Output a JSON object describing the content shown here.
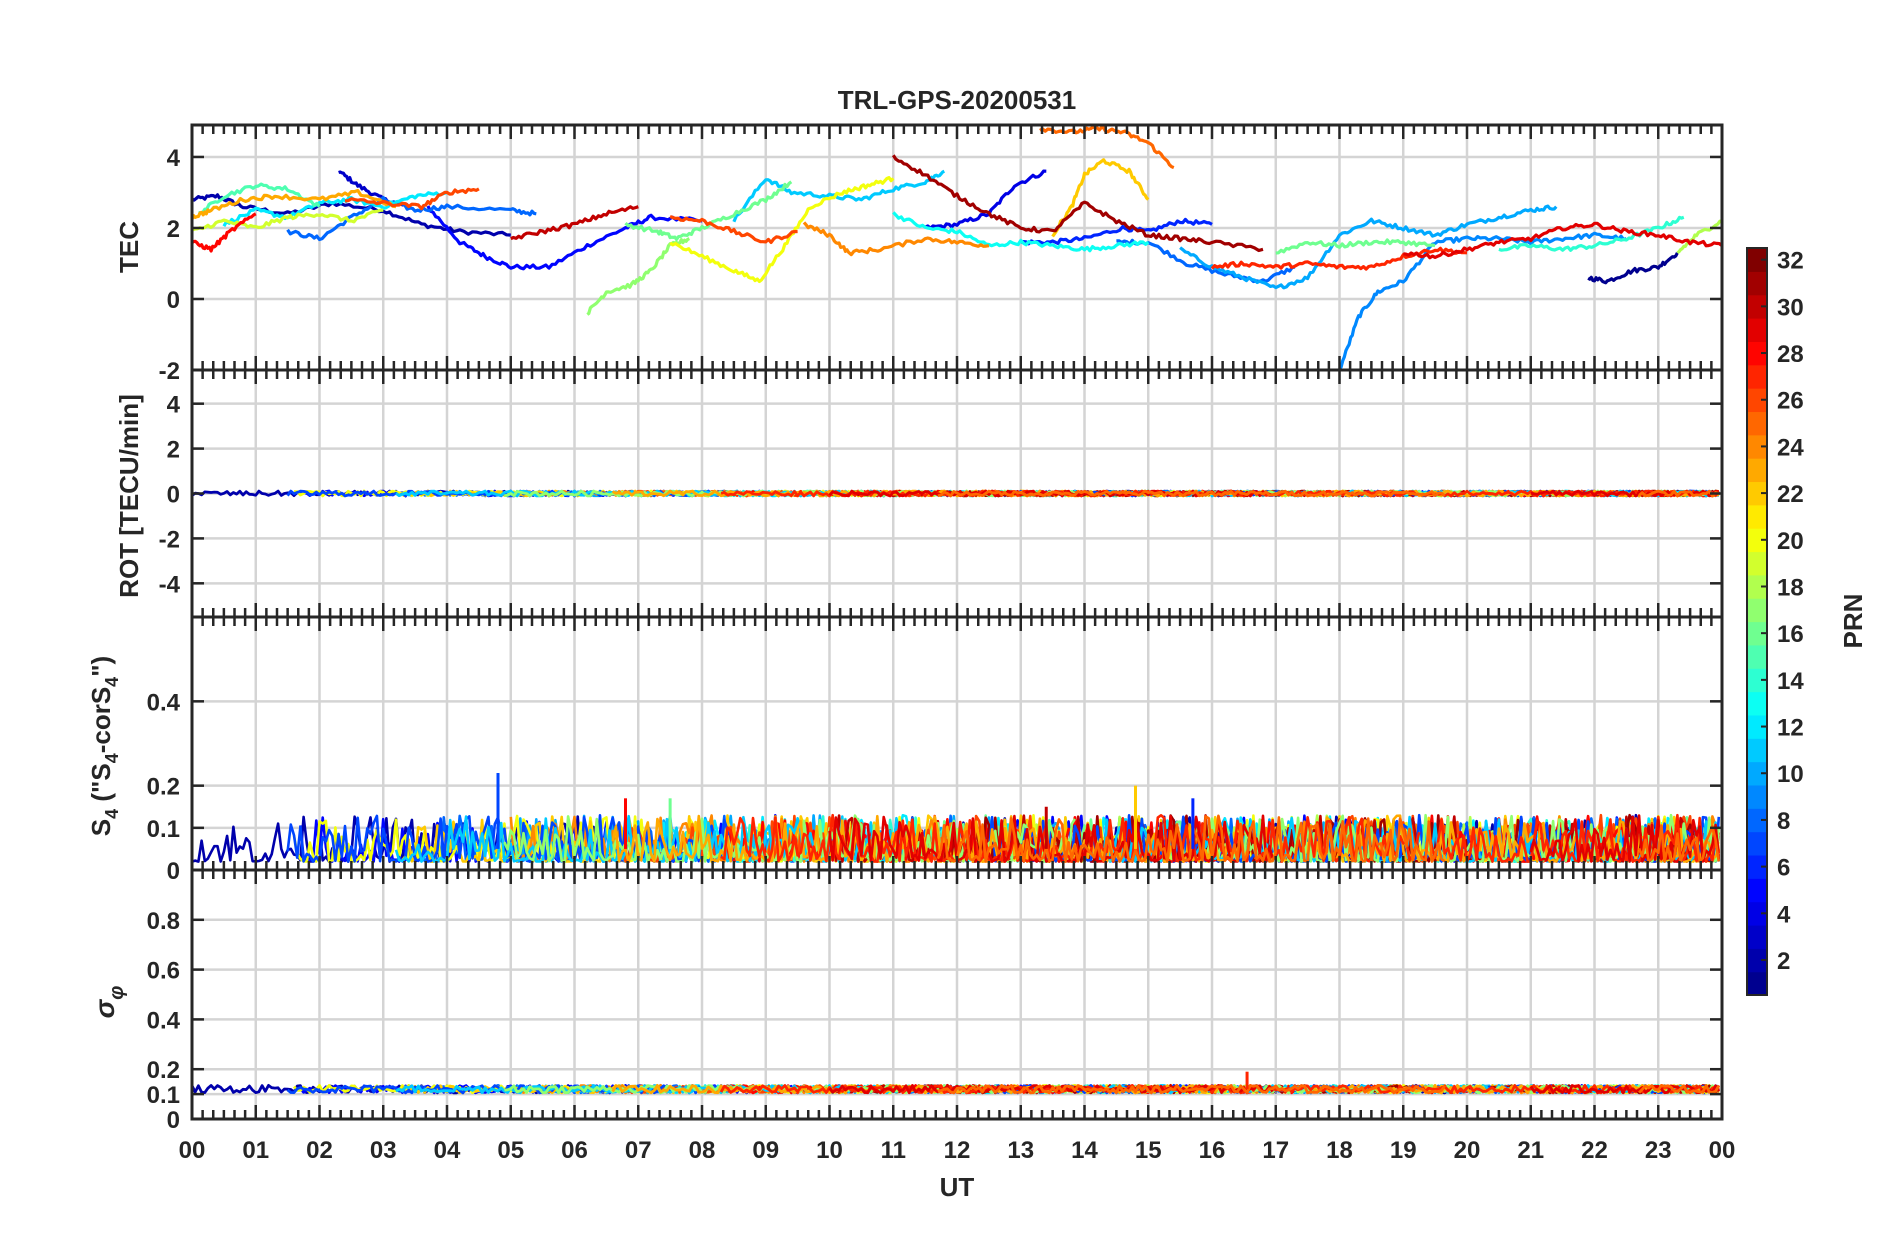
{
  "figure": {
    "title": "TRL-GPS-20200531",
    "xlabel": "UT",
    "x_tick_labels": [
      "00",
      "01",
      "02",
      "03",
      "04",
      "05",
      "06",
      "07",
      "08",
      "09",
      "10",
      "11",
      "12",
      "13",
      "14",
      "15",
      "16",
      "17",
      "18",
      "19",
      "20",
      "21",
      "22",
      "23",
      "00"
    ]
  },
  "colorbar": {
    "label": "PRN",
    "range": [
      1,
      32
    ],
    "tick_labels": [
      "2",
      "4",
      "6",
      "8",
      "10",
      "12",
      "14",
      "16",
      "18",
      "20",
      "22",
      "24",
      "26",
      "28",
      "30",
      "32"
    ],
    "tick_values": [
      2,
      4,
      6,
      8,
      10,
      12,
      14,
      16,
      18,
      20,
      22,
      24,
      26,
      28,
      30,
      32
    ],
    "colormap": "jet",
    "colormap_stops": [
      "#00008f",
      "#0000ff",
      "#00ffff",
      "#ffff00",
      "#ff0000",
      "#800000"
    ]
  },
  "chart_data": [
    {
      "type": "line",
      "panel": "tec",
      "ylabel": "TEC",
      "xlim": [
        0,
        24
      ],
      "ylim": [
        -2,
        4.9
      ],
      "y_tick_labels": [
        "-2",
        "0",
        "2",
        "4"
      ],
      "y_tick_values": [
        -2,
        0,
        2,
        4
      ],
      "grid": true,
      "series": [
        {
          "prn": 2,
          "x": [
            0,
            0.4,
            0.8,
            1.5,
            2.2,
            3,
            3.6,
            4.2,
            5
          ],
          "y": [
            2.8,
            2.9,
            2.6,
            2.4,
            2.7,
            2.5,
            2.1,
            1.9,
            1.8
          ]
        },
        {
          "prn": 3,
          "x": [
            2.3,
            2.6,
            3.0,
            3.4
          ],
          "y": [
            3.6,
            3.2,
            2.8,
            2.6
          ]
        },
        {
          "prn": 5,
          "x": [
            3.7,
            4.2,
            4.6,
            5,
            5.6,
            6.2,
            6.8,
            7.2,
            8.0
          ],
          "y": [
            2.6,
            1.6,
            1.2,
            0.9,
            0.9,
            1.5,
            2.0,
            2.3,
            2.2
          ]
        },
        {
          "prn": 4,
          "x": [
            11.5,
            12,
            12.5,
            12.9,
            13.4
          ],
          "y": [
            2.0,
            2.1,
            2.4,
            3.2,
            3.6
          ]
        },
        {
          "prn": 6,
          "x": [
            13,
            13.5,
            14,
            14.6,
            15,
            15.5,
            16.0
          ],
          "y": [
            1.6,
            1.6,
            1.7,
            2.0,
            1.9,
            2.2,
            2.1
          ]
        },
        {
          "prn": 1,
          "x": [
            21.9,
            22.2,
            22.6,
            23.0,
            23.3
          ],
          "y": [
            0.6,
            0.5,
            0.8,
            0.9,
            1.3
          ]
        },
        {
          "prn": 8,
          "x": [
            1.5,
            2.0,
            2.5,
            3.0,
            3.5,
            4.0,
            5.0,
            5.4
          ],
          "y": [
            1.9,
            1.7,
            2.3,
            2.8,
            2.5,
            2.6,
            2.5,
            2.4
          ]
        },
        {
          "prn": 8,
          "x": [
            14.5,
            15,
            15.6,
            16.2,
            16.8,
            17.3
          ],
          "y": [
            1.6,
            1.6,
            1.0,
            0.7,
            0.5,
            0.9
          ]
        },
        {
          "prn": 9,
          "x": [
            18.0,
            18.3,
            18.6,
            19.0,
            19.5,
            20.0,
            20.5,
            21.0,
            21.5,
            22.0,
            22.5
          ],
          "y": [
            -2.0,
            -0.5,
            0.2,
            0.5,
            1.6,
            1.7,
            1.7,
            1.6,
            1.7,
            1.8,
            1.7
          ]
        },
        {
          "prn": 10,
          "x": [
            15.5,
            16,
            16.5,
            17.0,
            17.5,
            18.0,
            18.5,
            19.0,
            19.5,
            20.0,
            20.5,
            21.0,
            21.4
          ],
          "y": [
            1.4,
            0.9,
            0.6,
            0.3,
            0.6,
            1.8,
            2.2,
            2.0,
            1.8,
            2.1,
            2.3,
            2.5,
            2.6
          ]
        },
        {
          "prn": 11,
          "x": [
            8.5,
            9.0,
            9.4,
            10.0,
            10.5,
            11.0,
            11.5,
            11.8
          ],
          "y": [
            2.2,
            3.4,
            3.0,
            2.9,
            2.8,
            3.1,
            3.3,
            3.6
          ]
        },
        {
          "prn": 12,
          "x": [
            0.5,
            1.0,
            1.5,
            2.0,
            2.5,
            3.0,
            3.5,
            4.0
          ],
          "y": [
            2.1,
            2.5,
            2.3,
            2.7,
            2.8,
            2.6,
            2.9,
            3.0
          ]
        },
        {
          "prn": 13,
          "x": [
            11.0,
            11.5,
            12.0,
            12.5,
            13.0,
            13.5,
            14.0,
            14.5,
            15.0
          ],
          "y": [
            2.4,
            2.0,
            1.9,
            1.5,
            1.6,
            1.5,
            1.4,
            1.5,
            1.6
          ]
        },
        {
          "prn": 14,
          "x": [
            20.5,
            21.0,
            21.5,
            22.0,
            22.5,
            23.0,
            23.4
          ],
          "y": [
            1.4,
            1.5,
            1.4,
            1.5,
            1.7,
            2.0,
            2.3
          ]
        },
        {
          "prn": 15,
          "x": [
            0.1,
            0.5,
            1.0,
            1.5,
            2.0
          ],
          "y": [
            2.4,
            2.9,
            3.2,
            3.1,
            2.6
          ]
        },
        {
          "prn": 16,
          "x": [
            6.8,
            7.3,
            7.6,
            8.0,
            8.5,
            9.0,
            9.4
          ],
          "y": [
            2.1,
            1.9,
            1.7,
            2.0,
            2.4,
            2.8,
            3.3
          ]
        },
        {
          "prn": 17,
          "x": [
            6.2,
            6.5,
            6.9,
            7.2,
            7.5,
            7.8
          ],
          "y": [
            -0.4,
            0.2,
            0.4,
            0.8,
            1.5,
            1.7
          ]
        },
        {
          "prn": 16,
          "x": [
            17.0,
            17.5,
            18.0,
            18.5,
            19.0,
            19.5
          ],
          "y": [
            1.3,
            1.6,
            1.5,
            1.6,
            1.6,
            1.5
          ]
        },
        {
          "prn": 19,
          "x": [
            0.0,
            0.5,
            1.0,
            1.5,
            2.0,
            2.5,
            3.0
          ],
          "y": [
            1.9,
            2.2,
            2.0,
            2.3,
            2.4,
            2.2,
            2.5
          ]
        },
        {
          "prn": 18,
          "x": [
            23.3,
            23.6,
            24.0
          ],
          "y": [
            1.3,
            1.8,
            2.2
          ]
        },
        {
          "prn": 20,
          "x": [
            7.5,
            8.0,
            8.5,
            8.9,
            9.3,
            9.7,
            10.2,
            10.6,
            11.0
          ],
          "y": [
            1.6,
            1.2,
            0.8,
            0.5,
            1.5,
            2.6,
            3.0,
            3.2,
            3.4
          ]
        },
        {
          "prn": 22,
          "x": [
            13.5,
            13.8,
            14.0,
            14.3,
            14.7,
            15.0
          ],
          "y": [
            1.8,
            2.6,
            3.5,
            3.9,
            3.6,
            2.8
          ]
        },
        {
          "prn": 23,
          "x": [
            0.0,
            0.3,
            0.8,
            1.3,
            2.0,
            2.6,
            3.2
          ],
          "y": [
            2.3,
            2.5,
            2.8,
            2.9,
            2.8,
            3.0,
            2.6
          ]
        },
        {
          "prn": 24,
          "x": [
            9.6,
            10.0,
            10.3,
            10.8,
            11.5,
            12.0,
            12.5
          ],
          "y": [
            2.1,
            1.8,
            1.3,
            1.4,
            1.7,
            1.6,
            1.5
          ]
        },
        {
          "prn": 25,
          "x": [
            13.3,
            13.8,
            14.2,
            14.6,
            15.0,
            15.4
          ],
          "y": [
            4.8,
            4.7,
            4.8,
            4.7,
            4.4,
            3.7
          ]
        },
        {
          "prn": 26,
          "x": [
            2.4,
            3.0,
            3.6,
            4.0,
            4.5
          ],
          "y": [
            2.8,
            2.7,
            2.6,
            3.0,
            3.1
          ]
        },
        {
          "prn": 26,
          "x": [
            7.5,
            8.0,
            8.5,
            9.0,
            9.5
          ],
          "y": [
            2.3,
            2.2,
            1.9,
            1.6,
            1.9
          ]
        },
        {
          "prn": 27,
          "x": [
            16.0,
            16.5,
            17.0,
            17.5,
            18.0,
            18.5,
            19.0,
            19.5,
            20.0
          ],
          "y": [
            0.9,
            1.0,
            0.9,
            1.0,
            0.9,
            0.9,
            1.2,
            1.4,
            1.3
          ]
        },
        {
          "prn": 28,
          "x": [
            0.0,
            0.3,
            0.6,
            1.0
          ],
          "y": [
            1.6,
            1.4,
            1.9,
            2.4
          ]
        },
        {
          "prn": 29,
          "x": [
            19.0,
            19.5,
            20.0,
            20.5,
            21.0,
            21.5,
            22.0,
            22.5,
            23.0,
            23.5,
            24.0
          ],
          "y": [
            1.3,
            1.2,
            1.4,
            1.6,
            1.7,
            2.0,
            2.1,
            1.9,
            1.8,
            1.6,
            1.5
          ]
        },
        {
          "prn": 30,
          "x": [
            5.0,
            5.5,
            6.0,
            6.5,
            7.0
          ],
          "y": [
            1.7,
            1.9,
            2.1,
            2.4,
            2.6
          ]
        },
        {
          "prn": 31,
          "x": [
            11.0,
            11.5,
            12.0,
            12.5,
            13.0,
            13.5,
            14.0,
            14.5,
            15.0,
            15.5,
            16.0,
            16.8
          ],
          "y": [
            4.0,
            3.5,
            2.9,
            2.4,
            2.0,
            1.9,
            2.7,
            2.2,
            1.8,
            1.7,
            1.6,
            1.4
          ]
        }
      ]
    },
    {
      "type": "line",
      "panel": "rot",
      "ylabel": "ROT [TECU/min]",
      "xlim": [
        0,
        24
      ],
      "ylim": [
        -5.5,
        5.5
      ],
      "y_tick_labels": [
        "-4",
        "-2",
        "0",
        "2",
        "4"
      ],
      "y_tick_values": [
        -4,
        -2,
        0,
        2,
        4
      ],
      "grid": true,
      "series_note": "all PRNs fluctuate within about ±0.15 TECU/min around 0"
    },
    {
      "type": "line",
      "panel": "s4",
      "ylabel": "S4 (\"S4-corS4\")",
      "xlim": [
        0,
        24
      ],
      "ylim": [
        0,
        0.6
      ],
      "y_tick_labels": [
        "0",
        "0.1",
        "0.2",
        "0.4"
      ],
      "y_tick_values": [
        0,
        0.1,
        0.2,
        0.4
      ],
      "grid": true,
      "peaks": [
        {
          "prn": 7,
          "x": 4.8,
          "y": 0.23
        },
        {
          "prn": 22,
          "x": 14.8,
          "y": 0.2
        },
        {
          "prn": 6,
          "x": 15.7,
          "y": 0.17
        },
        {
          "prn": 28,
          "x": 6.8,
          "y": 0.17
        },
        {
          "prn": 16,
          "x": 7.5,
          "y": 0.17
        },
        {
          "prn": 30,
          "x": 13.4,
          "y": 0.15
        }
      ]
    },
    {
      "type": "line",
      "panel": "sigma_phi",
      "ylabel": "σφ",
      "xlim": [
        0,
        24
      ],
      "ylim": [
        0,
        1.0
      ],
      "y_tick_labels": [
        "0",
        "0.1",
        "0.2",
        "0.4",
        "0.6",
        "0.8"
      ],
      "y_tick_values": [
        0,
        0.1,
        0.2,
        0.4,
        0.6,
        0.8
      ],
      "grid": true,
      "baseline": 0.12,
      "peaks": [
        {
          "prn": 27,
          "x": 16.55,
          "y": 0.19
        }
      ]
    }
  ]
}
